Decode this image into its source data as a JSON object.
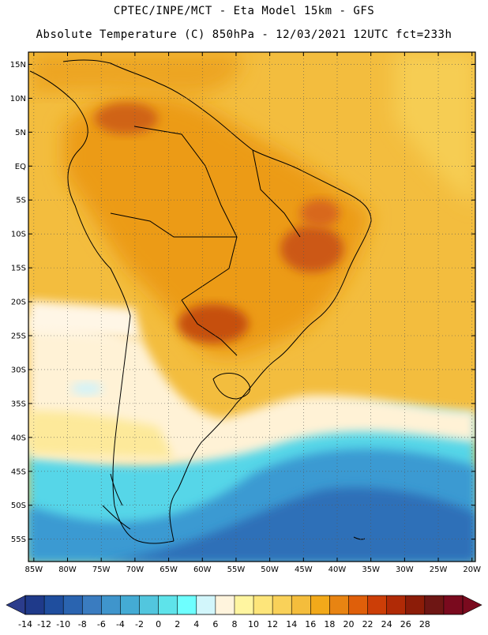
{
  "header": {
    "line1": "CPTEC/INPE/MCT -  Eta Model 15km - GFS",
    "line2": "Absolute Temperature (C) 850hPa - 12/03/2021 12UTC fct=233h"
  },
  "axes": {
    "lat_labels": [
      "15N",
      "10N",
      "5N",
      "EQ",
      "5S",
      "10S",
      "15S",
      "20S",
      "25S",
      "30S",
      "35S",
      "40S",
      "45S",
      "50S",
      "55S"
    ],
    "lat_values": [
      15,
      10,
      5,
      0,
      -5,
      -10,
      -15,
      -20,
      -25,
      -30,
      -35,
      -40,
      -45,
      -50,
      -55
    ],
    "lon_labels": [
      "85W",
      "80W",
      "75W",
      "70W",
      "65W",
      "60W",
      "55W",
      "50W",
      "45W",
      "40W",
      "35W",
      "30W",
      "25W",
      "20W"
    ],
    "lon_values": [
      -85,
      -80,
      -75,
      -70,
      -65,
      -60,
      -55,
      -50,
      -45,
      -40,
      -35,
      -30,
      -25,
      -20
    ],
    "lat_range": [
      -58.3,
      16.8
    ],
    "lon_range": [
      -85.8,
      -19.5
    ]
  },
  "colorbar": {
    "labels": [
      "-14",
      "-12",
      "-10",
      "-8",
      "-6",
      "-4",
      "-2",
      "0",
      "2",
      "4",
      "6",
      "8",
      "10",
      "12",
      "14",
      "16",
      "18",
      "20",
      "22",
      "24",
      "26",
      "28"
    ],
    "colors": [
      "#1f3a8a",
      "#1f4e9e",
      "#2a64b0",
      "#3a7cc0",
      "#3f95cc",
      "#44abd4",
      "#52c6de",
      "#5ee3ea",
      "#6effff",
      "#d2f6fb",
      "#fff4dd",
      "#fff5a0",
      "#fde57a",
      "#f9d159",
      "#f4bd3c",
      "#f2a91a",
      "#e88412",
      "#df5f0a",
      "#cc3e07",
      "#b02a06",
      "#8c1c08",
      "#6e1614",
      "#7a0a1e"
    ],
    "under_color": "#2b3c8c",
    "over_color": "#7a0a1e"
  },
  "map_regions": {
    "cold_ocean": "#2f74bf",
    "cool_ocean": "#4fd3e6",
    "mild": "#fff6e6",
    "warm": "#f5c144",
    "hot": "#ec9a18",
    "hottest": "#c94f0e",
    "land_base": "#f0a42a"
  }
}
